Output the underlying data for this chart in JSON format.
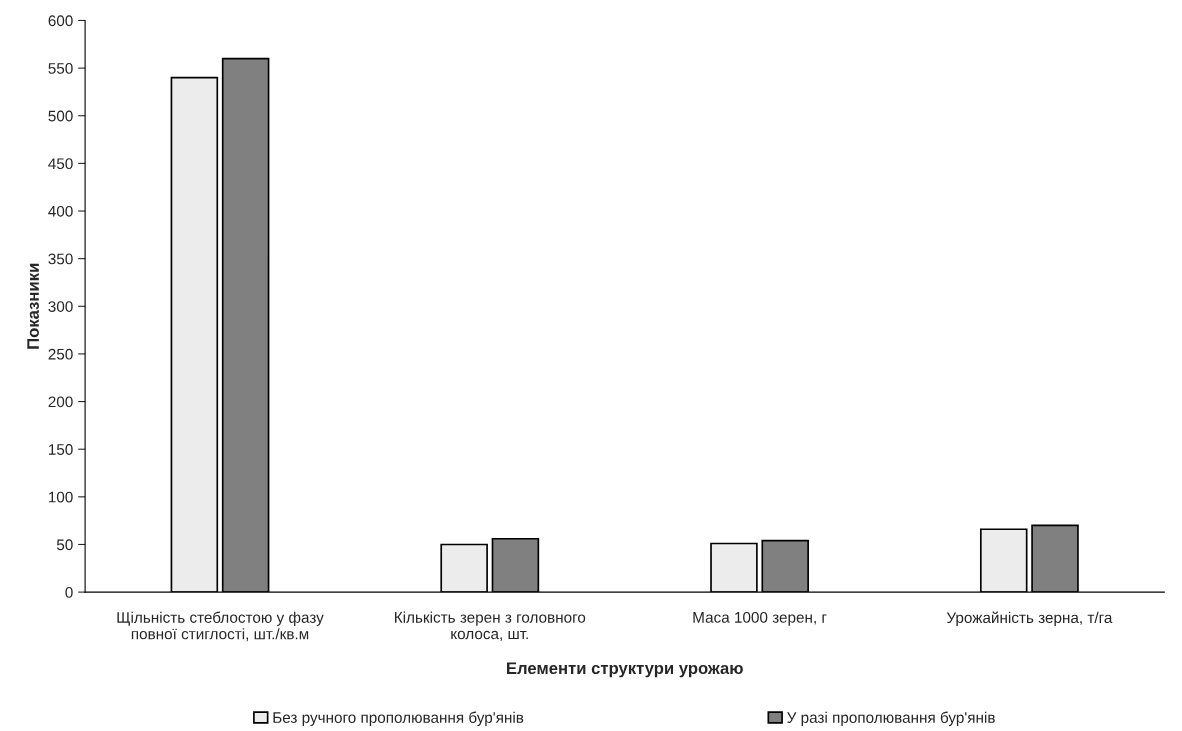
{
  "chart_data": {
    "type": "bar",
    "xlabel": "Елементи структури урожаю",
    "ylabel": "Показники",
    "categories": [
      "Щільність стеблостою у фазу повної стиглості, шт./кв.м",
      "Кількість зерен з головного колоса, шт.",
      "Маса 1000 зерен, г",
      "Урожайність зерна, т/га"
    ],
    "series": [
      {
        "name": "Без ручного прополювання бур'янів",
        "color": "#ececec",
        "values": [
          540,
          50,
          51,
          66
        ]
      },
      {
        "name": "У разі прополювання бур'янів",
        "color": "#808080",
        "values": [
          560,
          56,
          54,
          70
        ]
      }
    ],
    "ylim": [
      0,
      600
    ],
    "yticks": [
      0,
      50,
      100,
      150,
      200,
      250,
      300,
      350,
      400,
      450,
      500,
      550,
      600
    ],
    "grid": false,
    "legend": "bottom"
  }
}
